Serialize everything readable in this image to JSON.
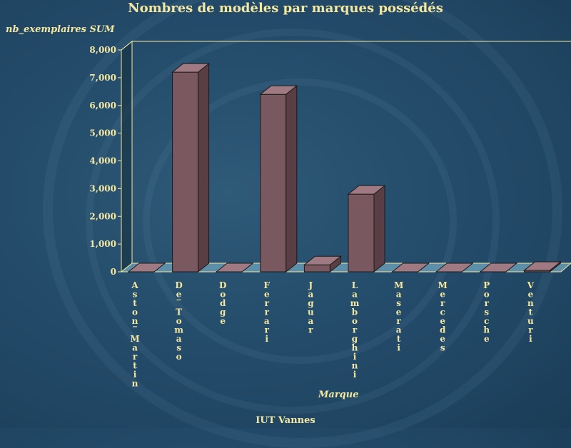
{
  "chart_data": {
    "type": "bar",
    "title": "Nombres de modèles par marques possédés",
    "ylabel": "nb_exemplaires SUM",
    "xlabel": "Marque",
    "categories": [
      "Aston Martin",
      "De Tomaso",
      "Dodge",
      "Ferrari",
      "Jaguar",
      "Lamborghini",
      "Maserati",
      "Mercedes",
      "Porsche",
      "Venturi"
    ],
    "category_labels": [
      "Aston_Martin",
      "De_Tomaso",
      "Dodge",
      "Ferrari",
      "Jaguar",
      "Lamborghini",
      "Maserati",
      "Mercedes",
      "Porsche",
      "Venturi"
    ],
    "values": [
      0,
      7200,
      0,
      6400,
      250,
      2800,
      0,
      0,
      0,
      50
    ],
    "ylim": [
      0,
      8000
    ],
    "yticks": [
      0,
      1000,
      2000,
      3000,
      4000,
      5000,
      6000,
      7000,
      8000
    ],
    "ytick_labels": [
      "0",
      "1,000",
      "2,000",
      "3,000",
      "4,000",
      "5,000",
      "6,000",
      "7,000",
      "8,000"
    ],
    "grid": false,
    "legend": "none",
    "colors": {
      "bar_front": "#7a5860",
      "bar_side": "#5a3e46",
      "bar_top": "#a07a82",
      "axis": "#f4e7a0",
      "floor": "#5d8fa8"
    }
  },
  "footer": "IUT Vannes"
}
